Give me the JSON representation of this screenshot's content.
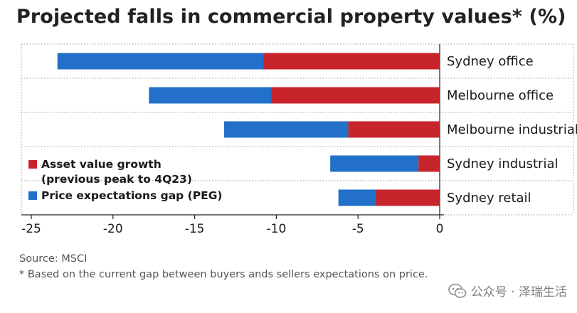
{
  "title": "Projected falls in commercial property values* (%)",
  "source": "Source: MSCI",
  "note": "* Based on the current gap between buyers ands sellers expectations on price.",
  "watermark": "公众号 · 泽瑞生活",
  "chart_data": {
    "type": "bar",
    "orientation": "horizontal",
    "stacked": true,
    "categories": [
      "Sydney office",
      "Melbourne office",
      "Melbourne industrial",
      "Sydney industrial",
      "Sydney retail"
    ],
    "series": [
      {
        "name": "Asset value growth (previous peak to 4Q23)",
        "color": "#c8242b",
        "values": [
          -10.8,
          -10.3,
          -5.6,
          -1.3,
          -3.9
        ]
      },
      {
        "name": "Price expectations gap (PEG)",
        "color": "#2270c9",
        "values": [
          -12.6,
          -7.5,
          -7.6,
          -5.4,
          -2.3
        ]
      }
    ],
    "xlim": [
      -25,
      0
    ],
    "xticks": [
      -25,
      -20,
      -15,
      -10,
      -5,
      0
    ],
    "grid": "horizontal dotted separators",
    "legend": "bottom-left inside plot"
  }
}
